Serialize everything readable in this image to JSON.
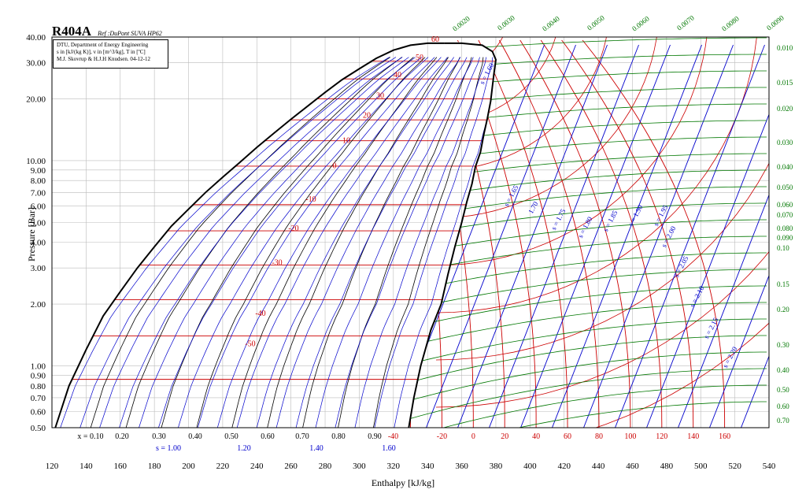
{
  "header": {
    "title": "R404A",
    "reference": "Ref :DuPont SUVA HP62",
    "info_lines": [
      "DTU, Department of Energy Engineering",
      "s in [kJ/(kg K)], v in [m^3/kg], T in [ºC]",
      "M.J. Skovrup & H.J.H Knudsen. 04-12-12"
    ]
  },
  "chart_data": {
    "type": "line",
    "title": "R404A",
    "xlabel": "Enthalpy [kJ/kg]",
    "ylabel": "Pressure [Bar]",
    "xlim": [
      120,
      540
    ],
    "ylim": [
      0.5,
      40
    ],
    "yscale": "log",
    "grid": true,
    "x_ticks": [
      120,
      140,
      160,
      180,
      200,
      220,
      240,
      260,
      280,
      300,
      320,
      340,
      360,
      380,
      400,
      420,
      440,
      460,
      480,
      500,
      520,
      540
    ],
    "y_ticks": [
      0.5,
      0.6,
      0.7,
      0.8,
      0.9,
      1,
      2,
      3,
      4,
      5,
      6,
      7,
      8,
      9,
      10,
      20,
      30,
      40
    ],
    "y_tick_labels": [
      "0.50",
      "0.60",
      "0.70",
      "0.80",
      "0.90",
      "1.00",
      "2.00",
      "3.00",
      "4.00",
      "5.00",
      "6.00",
      "7.00",
      "8.00",
      "9.00",
      "10.00",
      "20.00",
      "30.00",
      "40.00"
    ],
    "saturation_dome": {
      "liquid": [
        [
          122,
          0.5
        ],
        [
          130,
          0.8
        ],
        [
          140,
          1.2
        ],
        [
          150,
          1.75
        ],
        [
          160,
          2.3
        ],
        [
          170,
          3
        ],
        [
          180,
          3.8
        ],
        [
          190,
          4.8
        ],
        [
          200,
          5.8
        ],
        [
          210,
          7
        ],
        [
          220,
          8.3
        ],
        [
          230,
          9.8
        ],
        [
          240,
          11.6
        ],
        [
          250,
          13.6
        ],
        [
          260,
          15.9
        ],
        [
          270,
          18.5
        ],
        [
          280,
          21.5
        ],
        [
          290,
          24.8
        ],
        [
          300,
          28
        ],
        [
          310,
          31.5
        ],
        [
          320,
          34.5
        ],
        [
          330,
          36.5
        ],
        [
          340,
          37.3
        ],
        [
          350,
          37.3
        ]
      ],
      "vapor": [
        [
          329,
          0.5
        ],
        [
          332,
          0.7
        ],
        [
          336,
          1
        ],
        [
          342,
          1.5
        ],
        [
          348,
          2
        ],
        [
          352,
          2.8
        ],
        [
          356,
          3.8
        ],
        [
          360,
          5
        ],
        [
          363,
          6.3
        ],
        [
          366,
          7.7
        ],
        [
          368,
          9.3
        ],
        [
          371,
          11
        ],
        [
          373,
          13.5
        ],
        [
          375,
          16
        ],
        [
          377,
          19.5
        ],
        [
          378,
          23
        ],
        [
          379,
          27
        ],
        [
          380,
          31
        ],
        [
          378,
          34
        ],
        [
          372,
          36.5
        ],
        [
          360,
          37.3
        ],
        [
          350,
          37.3
        ]
      ]
    },
    "quality_labels": [
      "x = 0.10",
      "0.20",
      "0.30",
      "0.40",
      "0.50",
      "0.60",
      "0.70",
      "0.80",
      "0.90"
    ],
    "quality_values": [
      0.1,
      0.2,
      0.3,
      0.4,
      0.5,
      0.6,
      0.7,
      0.8,
      0.9
    ],
    "entropy_labels_bottom": [
      "s = 1.00",
      "1.20",
      "1.40",
      "1.60"
    ],
    "entropy_values_bottom": [
      1.0,
      1.2,
      1.4,
      1.6
    ],
    "entropy_labels_vapor": [
      "s = 1.60",
      "s = 1.65",
      "1.70",
      "s = 1.75",
      "s = 1.80",
      "s = 1.85",
      "s = 1.90",
      "s = 1.95",
      "s = 2.00",
      "s = 2.05",
      "s = 2.10",
      "s = 2.15",
      "s = 2.20"
    ],
    "isotherm_labels": [
      "60",
      "50",
      "40",
      "30",
      "20",
      "10",
      "0",
      "-10",
      "-20",
      "-30",
      "-40",
      "-50"
    ],
    "isotherm_values": [
      60,
      50,
      40,
      30,
      20,
      10,
      0,
      -10,
      -20,
      -30,
      -40,
      -50
    ],
    "superheat_temp_labels": [
      "-40",
      "-20",
      "0",
      "20",
      "40",
      "60",
      "80",
      "100",
      "120",
      "140",
      "160"
    ],
    "superheat_temp_values": [
      -40,
      -20,
      0,
      20,
      40,
      60,
      80,
      100,
      120,
      140,
      160
    ],
    "volume_labels_top": [
      "0.0020",
      "0.0030",
      "0.0040",
      "0.0050",
      "0.0060",
      "0.0070",
      "0.0080",
      "0.0090"
    ],
    "volume_labels_right": [
      "0.010",
      "0.015",
      "0.020",
      "0.030",
      "0.040",
      "0.050",
      "0.060",
      "0.070",
      "0.080",
      "0.090",
      "0.10",
      "0.15",
      "0.20",
      "0.30",
      "0.40",
      "0.50",
      "0.60",
      "0.70"
    ],
    "colors": {
      "isotherm": "#cc0000",
      "entropy": "#0000cc",
      "volume": "#007700",
      "quality": "#000000",
      "dome": "#000000",
      "grid": "#bbbbbb"
    }
  }
}
